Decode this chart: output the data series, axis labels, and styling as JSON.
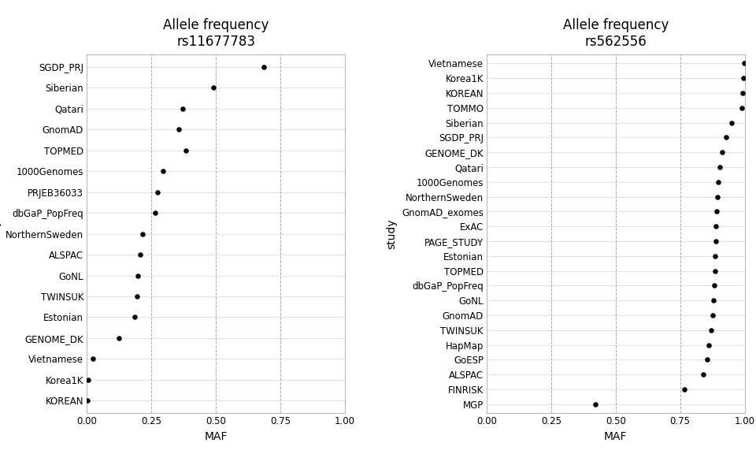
{
  "plot1": {
    "title": "Allele frequency",
    "subtitle": "rs11677783",
    "xlabel": "MAF",
    "ylabel": "study",
    "studies": [
      "KOREAN",
      "Korea1K",
      "Vietnamese",
      "GENOME_DK",
      "Estonian",
      "TWINSUK",
      "GoNL",
      "ALSPAC",
      "NorthernSweden",
      "dbGaP_PopFreq",
      "PRJEB36033",
      "1000Genomes",
      "TOPMED",
      "GnomAD",
      "Qatari",
      "Siberian",
      "SGDP_PRJ"
    ],
    "maf": [
      0.003,
      0.005,
      0.022,
      0.125,
      0.185,
      0.195,
      0.198,
      0.205,
      0.215,
      0.265,
      0.275,
      0.295,
      0.385,
      0.355,
      0.37,
      0.49,
      0.685
    ],
    "xlim": [
      0.0,
      1.0
    ],
    "xticks": [
      0.0,
      0.25,
      0.5,
      0.75,
      1.0
    ]
  },
  "plot2": {
    "title": "Allele frequency",
    "subtitle": "rs562556",
    "xlabel": "MAF",
    "ylabel": "study",
    "studies": [
      "MGP",
      "FINRISK",
      "ALSPAC",
      "GoESP",
      "HapMap",
      "TWINSUK",
      "GnomAD",
      "GoNL",
      "dbGaP_PopFreq",
      "TOPMED",
      "Estonian",
      "PAGE_STUDY",
      "ExAC",
      "GnomAD_exomes",
      "NorthernSweden",
      "1000Genomes",
      "Qatari",
      "GENOME_DK",
      "SGDP_PRJ",
      "Siberian",
      "TOMMO",
      "KOREAN",
      "Korea1K",
      "Vietnamese"
    ],
    "maf": [
      0.42,
      0.765,
      0.84,
      0.855,
      0.862,
      0.87,
      0.875,
      0.878,
      0.882,
      0.884,
      0.886,
      0.887,
      0.889,
      0.891,
      0.893,
      0.898,
      0.904,
      0.914,
      0.928,
      0.948,
      0.988,
      0.991,
      0.994,
      0.999
    ],
    "xlim": [
      0.0,
      1.0
    ],
    "xticks": [
      0.0,
      0.25,
      0.5,
      0.75,
      1.0
    ]
  },
  "dot_color": "#000000",
  "dot_size": 22,
  "grid_h_color": "#dddddd",
  "grid_v_color": "#aaaaaa",
  "bg_color": "#ffffff",
  "title_fontsize": 12,
  "subtitle_fontsize": 10,
  "label_fontsize": 10,
  "tick_fontsize": 8.5
}
